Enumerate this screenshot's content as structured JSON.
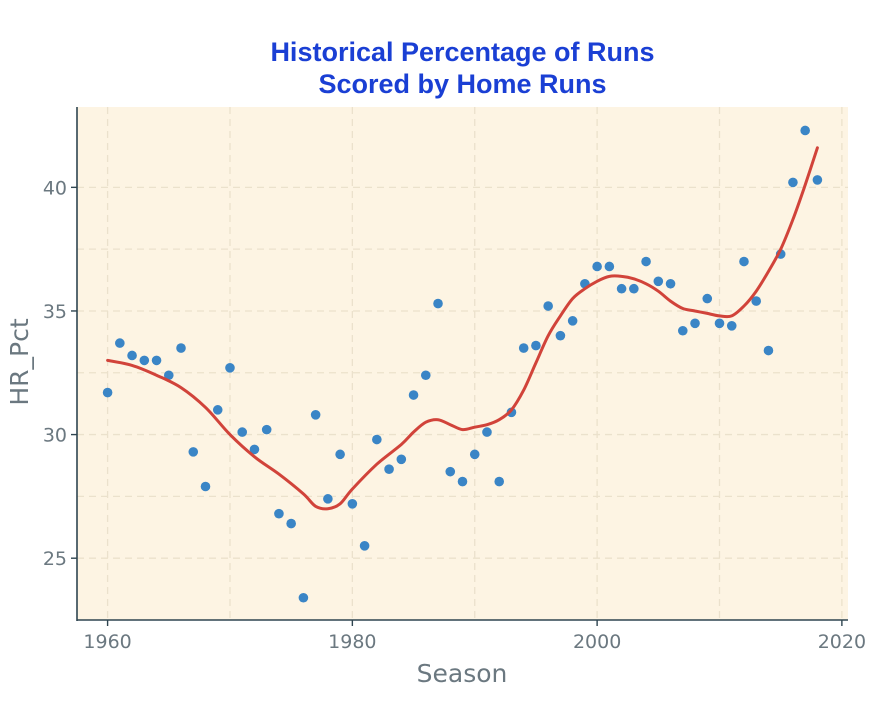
{
  "chart_data": {
    "type": "scatter",
    "title": [
      "Historical Percentage of Runs",
      "Scored by Home Runs"
    ],
    "xlabel": "Season",
    "ylabel": "HR_Pct",
    "xlim": [
      1957.5,
      2020.5
    ],
    "ylim": [
      22.5,
      43.25
    ],
    "xticks": [
      1960,
      1980,
      2000,
      2020
    ],
    "xtick_labels": [
      "1960",
      "1980",
      "2000",
      "2020"
    ],
    "yticks": [
      25,
      30,
      35,
      40
    ],
    "ytick_labels": [
      "25",
      "30",
      "35",
      "40"
    ],
    "grid": true,
    "colors": {
      "panel": "#fdf4e3",
      "points": "#3a85c6",
      "smooth": "#d1433a",
      "title": "#1a3fd4",
      "axis_text": "#6b7880"
    },
    "series": [
      {
        "name": "HR_Pct",
        "kind": "points",
        "x": [
          1960,
          1961,
          1962,
          1963,
          1964,
          1965,
          1966,
          1967,
          1968,
          1969,
          1970,
          1971,
          1972,
          1973,
          1974,
          1975,
          1976,
          1977,
          1978,
          1979,
          1980,
          1981,
          1982,
          1983,
          1984,
          1985,
          1986,
          1987,
          1988,
          1989,
          1990,
          1991,
          1992,
          1993,
          1994,
          1995,
          1996,
          1997,
          1998,
          1999,
          2000,
          2001,
          2002,
          2003,
          2004,
          2005,
          2006,
          2007,
          2008,
          2009,
          2010,
          2011,
          2012,
          2013,
          2014,
          2015,
          2016,
          2017,
          2018
        ],
        "y": [
          31.7,
          33.7,
          33.2,
          33.0,
          33.0,
          32.4,
          33.5,
          29.3,
          27.9,
          31.0,
          32.7,
          30.1,
          29.4,
          30.2,
          26.8,
          26.4,
          23.4,
          30.8,
          27.4,
          29.2,
          27.2,
          25.5,
          29.8,
          28.6,
          29.0,
          31.6,
          32.4,
          35.3,
          28.5,
          28.1,
          29.2,
          30.1,
          28.1,
          30.9,
          33.5,
          33.6,
          35.2,
          34.0,
          34.6,
          36.1,
          36.8,
          36.8,
          35.9,
          35.9,
          37.0,
          36.2,
          36.1,
          34.2,
          34.5,
          35.5,
          34.5,
          34.4,
          37.0,
          35.4,
          33.4,
          37.3,
          40.2,
          42.3,
          40.3
        ]
      },
      {
        "name": "smooth",
        "kind": "line",
        "x": [
          1960,
          1962,
          1964,
          1966,
          1968,
          1970,
          1972,
          1974,
          1976,
          1977,
          1978,
          1979,
          1980,
          1982,
          1984,
          1985,
          1986,
          1987,
          1988,
          1989,
          1990,
          1991,
          1992,
          1993,
          1994,
          1995,
          1996,
          1997,
          1998,
          1999,
          2000,
          2001,
          2002,
          2003,
          2004,
          2005,
          2006,
          2007,
          2008,
          2009,
          2010,
          2011,
          2012,
          2013,
          2014,
          2015,
          2016,
          2017,
          2018
        ],
        "y": [
          33.0,
          32.8,
          32.4,
          31.9,
          31.1,
          30.0,
          29.1,
          28.4,
          27.6,
          27.1,
          27.0,
          27.2,
          27.8,
          28.8,
          29.6,
          30.1,
          30.5,
          30.6,
          30.4,
          30.2,
          30.3,
          30.4,
          30.6,
          31.0,
          31.8,
          32.9,
          34.0,
          34.8,
          35.5,
          35.9,
          36.2,
          36.4,
          36.4,
          36.3,
          36.1,
          35.8,
          35.4,
          35.1,
          35.0,
          34.9,
          34.8,
          34.8,
          35.2,
          35.8,
          36.6,
          37.5,
          38.7,
          40.1,
          41.6
        ]
      }
    ]
  }
}
